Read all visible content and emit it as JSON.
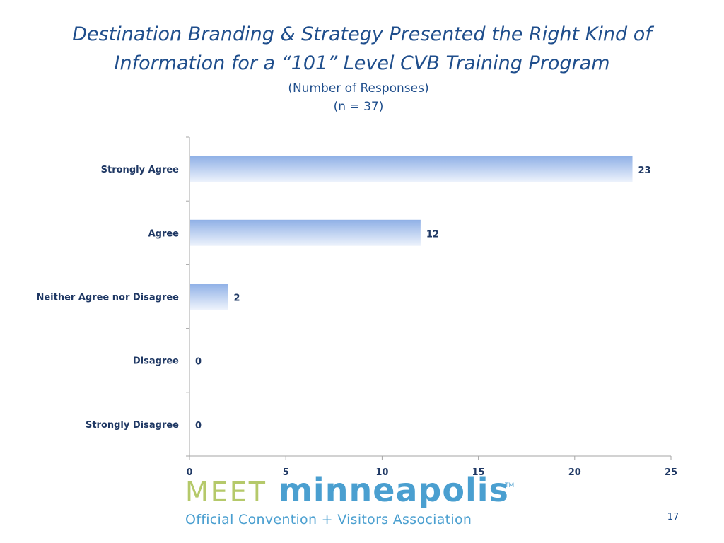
{
  "slide": {
    "title": "Destination Branding & Strategy Presented the Right Kind of Information for a “101” Level CVB Training Program",
    "subtitle_line1": "(Number of Responses)",
    "subtitle_line2": "(n = 37)",
    "page_number": "17"
  },
  "logo": {
    "meet": "MEET",
    "city": "minneapolis",
    "tm": "TM",
    "tagline": "Official Convention + Visitors Association"
  },
  "colors": {
    "bar_top": "#8fb0e6",
    "bar_bottom": "#eef3fc",
    "text": "#1f3864",
    "axis": "#a6a6a6"
  },
  "chart_data": {
    "type": "bar",
    "orientation": "horizontal",
    "categories": [
      "Strongly Agree",
      "Agree",
      "Neither Agree nor Disagree",
      "Disagree",
      "Strongly Disagree"
    ],
    "values": [
      23,
      12,
      2,
      0,
      0
    ],
    "xlim": [
      0,
      25
    ],
    "xticks": [
      0,
      5,
      10,
      15,
      20,
      25
    ],
    "grid": false,
    "legend": "none"
  }
}
